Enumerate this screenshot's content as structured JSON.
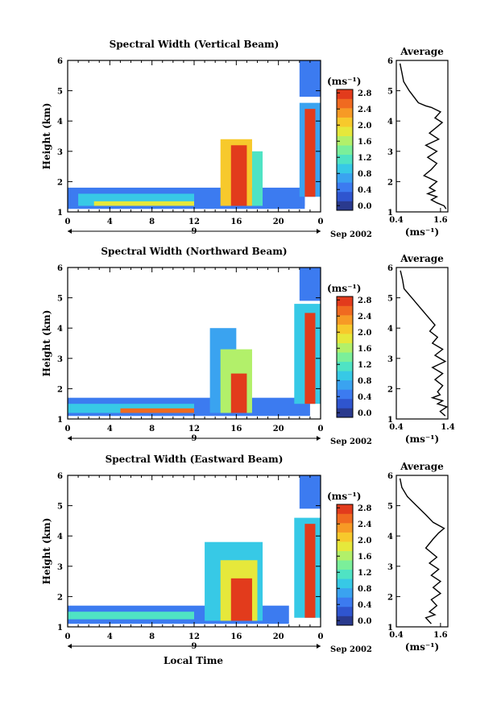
{
  "figure": {
    "xlabel": "Local Time",
    "date_label": "Sep 2002",
    "colorbar_unit": "(ms⁻¹)",
    "avg_title": "Average",
    "avg_unit": "(ms⁻¹)",
    "ylabel": "Height (km)",
    "day_label": "9"
  },
  "colors": {
    "scale": [
      "#2a3a8e",
      "#2f55cf",
      "#3c7bf0",
      "#3aa3f0",
      "#37c9e6",
      "#4fe3c4",
      "#7bef9a",
      "#b2f06a",
      "#e6e83b",
      "#f7c92c",
      "#f79a25",
      "#f06a20",
      "#e23b1c"
    ],
    "line": "#000000"
  },
  "chart_data": [
    {
      "type": "heatmap",
      "title": "Spectral Width (Vertical Beam)",
      "xlabel": "",
      "ylabel": "Height (km)",
      "xlim": [
        0,
        24
      ],
      "ylim": [
        1,
        6
      ],
      "xticks": [
        "0",
        "4",
        "8",
        "12",
        "16",
        "20",
        "0"
      ],
      "yticks": [
        "1",
        "2",
        "3",
        "4",
        "5",
        "6"
      ],
      "colorbar": {
        "unit": "(ms⁻¹)",
        "ticks": [
          "0.0",
          "0.4",
          "0.8",
          "1.2",
          "1.6",
          "2.0",
          "2.4",
          "2.8"
        ],
        "range": [
          0,
          3.0
        ]
      },
      "regions": [
        {
          "x": [
            0,
            22.5
          ],
          "y": [
            1.1,
            1.8
          ],
          "value": 0.5
        },
        {
          "x": [
            1,
            12
          ],
          "y": [
            1.2,
            1.6
          ],
          "value": 1.1
        },
        {
          "x": [
            2.5,
            12
          ],
          "y": [
            1.2,
            1.35
          ],
          "value": 1.9
        },
        {
          "x": [
            14.5,
            17.5
          ],
          "y": [
            1.2,
            3.4
          ],
          "value": 2.3
        },
        {
          "x": [
            15.5,
            17.0
          ],
          "y": [
            1.2,
            3.2
          ],
          "value": 2.9
        },
        {
          "x": [
            17.5,
            18.5
          ],
          "y": [
            1.2,
            3.0
          ],
          "value": 1.3
        },
        {
          "x": [
            18.5,
            22.5
          ],
          "y": [
            1.2,
            1.5
          ],
          "value": 0.6
        },
        {
          "x": [
            22.0,
            24
          ],
          "y": [
            4.8,
            6
          ],
          "value": 0.5
        },
        {
          "x": [
            22.0,
            24
          ],
          "y": [
            1.5,
            4.6
          ],
          "value": 0.9
        },
        {
          "x": [
            22.5,
            23.5
          ],
          "y": [
            1.5,
            4.4
          ],
          "value": 2.9
        }
      ],
      "avg": {
        "xlim": [
          0.4,
          1.8
        ],
        "xticks": [
          "0.4",
          "1.6"
        ],
        "x": [
          0.5,
          0.55,
          0.6,
          0.75,
          1.0,
          1.2,
          1.35,
          1.6,
          1.45,
          1.65,
          1.5,
          1.3,
          1.55,
          1.2,
          1.5,
          1.25,
          1.5,
          1.35,
          1.15,
          1.5,
          1.3,
          1.45,
          1.25,
          1.5,
          1.35,
          1.5,
          1.7,
          1.75
        ],
        "y": [
          5.9,
          5.6,
          5.3,
          5.0,
          4.6,
          4.5,
          4.45,
          4.3,
          4.1,
          3.95,
          3.8,
          3.6,
          3.4,
          3.2,
          3.0,
          2.8,
          2.6,
          2.4,
          2.2,
          2.0,
          1.8,
          1.7,
          1.6,
          1.5,
          1.4,
          1.3,
          1.2,
          1.1
        ]
      }
    },
    {
      "type": "heatmap",
      "title": "Spectral Width (Northward Beam)",
      "xlabel": "",
      "ylabel": "Height (km)",
      "xlim": [
        0,
        24
      ],
      "ylim": [
        1,
        6
      ],
      "xticks": [
        "0",
        "4",
        "8",
        "12",
        "16",
        "20",
        "0"
      ],
      "yticks": [
        "1",
        "2",
        "3",
        "4",
        "5",
        "6"
      ],
      "colorbar": {
        "unit": "(ms⁻¹)",
        "ticks": [
          "0.0",
          "0.4",
          "0.8",
          "1.2",
          "1.6",
          "2.0",
          "2.4",
          "2.8"
        ],
        "range": [
          0,
          3.0
        ]
      },
      "regions": [
        {
          "x": [
            0,
            23
          ],
          "y": [
            1.1,
            1.7
          ],
          "value": 0.5
        },
        {
          "x": [
            0,
            12
          ],
          "y": [
            1.2,
            1.5
          ],
          "value": 1.0
        },
        {
          "x": [
            5,
            12
          ],
          "y": [
            1.2,
            1.35
          ],
          "value": 2.6
        },
        {
          "x": [
            13.5,
            16
          ],
          "y": [
            1.2,
            4.0
          ],
          "value": 0.8
        },
        {
          "x": [
            14.5,
            17.5
          ],
          "y": [
            1.2,
            3.3
          ],
          "value": 1.8
        },
        {
          "x": [
            15.5,
            17.0
          ],
          "y": [
            1.2,
            2.5
          ],
          "value": 2.9
        },
        {
          "x": [
            18,
            22
          ],
          "y": [
            1.2,
            1.5
          ],
          "value": 0.6
        },
        {
          "x": [
            22.0,
            24
          ],
          "y": [
            4.9,
            6
          ],
          "value": 0.5
        },
        {
          "x": [
            21.5,
            24
          ],
          "y": [
            1.5,
            4.8
          ],
          "value": 1.0
        },
        {
          "x": [
            22.5,
            23.5
          ],
          "y": [
            1.5,
            4.5
          ],
          "value": 2.9
        }
      ],
      "avg": {
        "xlim": [
          0.4,
          1.4
        ],
        "xticks": [
          "0.4",
          "1.4"
        ],
        "x": [
          0.48,
          0.52,
          0.55,
          0.7,
          0.85,
          1.0,
          1.05,
          1.15,
          1.05,
          1.2,
          1.1,
          1.3,
          1.15,
          1.35,
          1.1,
          1.3,
          1.15,
          1.3,
          1.2,
          1.25,
          1.1,
          1.3,
          1.2,
          1.38,
          1.25,
          1.35
        ],
        "y": [
          5.9,
          5.6,
          5.3,
          5.0,
          4.7,
          4.4,
          4.3,
          4.1,
          3.9,
          3.7,
          3.5,
          3.3,
          3.1,
          2.9,
          2.7,
          2.5,
          2.3,
          2.1,
          1.9,
          1.8,
          1.7,
          1.6,
          1.5,
          1.4,
          1.25,
          1.1
        ]
      }
    },
    {
      "type": "heatmap",
      "title": "Spectral Width (Eastward Beam)",
      "xlabel": "Local Time",
      "ylabel": "Height (km)",
      "xlim": [
        0,
        24
      ],
      "ylim": [
        1,
        6
      ],
      "xticks": [
        "0",
        "4",
        "8",
        "12",
        "16",
        "20",
        "0"
      ],
      "yticks": [
        "1",
        "2",
        "3",
        "4",
        "5",
        "6"
      ],
      "colorbar": {
        "unit": "(ms⁻¹)",
        "ticks": [
          "0.0",
          "0.4",
          "0.8",
          "1.2",
          "1.6",
          "2.0",
          "2.4",
          "2.8"
        ],
        "range": [
          0,
          3.0
        ]
      },
      "regions": [
        {
          "x": [
            0,
            21
          ],
          "y": [
            1.1,
            1.7
          ],
          "value": 0.5
        },
        {
          "x": [
            0,
            12
          ],
          "y": [
            1.25,
            1.5
          ],
          "value": 1.3
        },
        {
          "x": [
            13,
            18.5
          ],
          "y": [
            1.2,
            3.8
          ],
          "value": 1.0
        },
        {
          "x": [
            14.5,
            18
          ],
          "y": [
            1.2,
            3.2
          ],
          "value": 2.0
        },
        {
          "x": [
            15.5,
            17.5
          ],
          "y": [
            1.2,
            2.6
          ],
          "value": 2.8
        },
        {
          "x": [
            22.0,
            24
          ],
          "y": [
            4.9,
            6
          ],
          "value": 0.5
        },
        {
          "x": [
            21.5,
            24
          ],
          "y": [
            1.3,
            4.6
          ],
          "value": 1.1
        },
        {
          "x": [
            22.5,
            23.5
          ],
          "y": [
            1.3,
            4.4
          ],
          "value": 2.9
        }
      ],
      "avg": {
        "xlim": [
          0.4,
          1.8
        ],
        "xticks": [
          "0.4",
          "1.6"
        ],
        "x": [
          0.5,
          0.55,
          0.7,
          0.95,
          1.2,
          1.4,
          1.7,
          1.55,
          1.4,
          1.2,
          1.5,
          1.3,
          1.55,
          1.35,
          1.6,
          1.4,
          1.6,
          1.35,
          1.5,
          1.3,
          1.45,
          1.2,
          1.35
        ],
        "y": [
          5.9,
          5.6,
          5.3,
          5.0,
          4.7,
          4.45,
          4.25,
          4.1,
          3.9,
          3.6,
          3.3,
          3.1,
          2.9,
          2.7,
          2.5,
          2.3,
          2.1,
          1.9,
          1.7,
          1.5,
          1.4,
          1.3,
          1.1
        ]
      }
    }
  ]
}
